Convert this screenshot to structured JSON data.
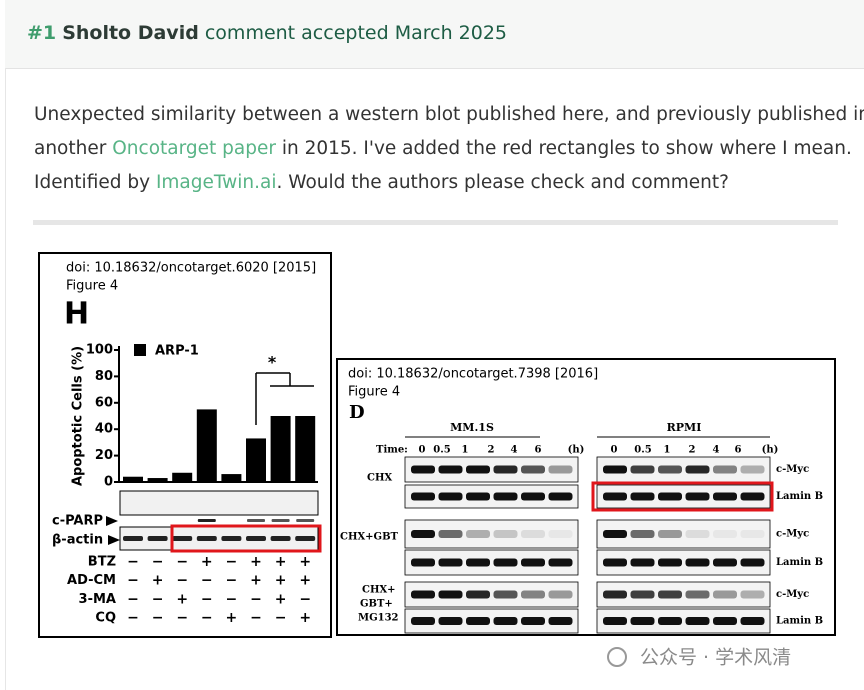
{
  "comment": {
    "number": "#1",
    "author": "Sholto David",
    "status": "comment accepted March 2025",
    "line1": "Unexpected similarity between a western blot published here, and previously published in",
    "line2": [
      "another ",
      "Oncotarget paper",
      " in 2015. I've added the red rectangles to show where I mean."
    ],
    "line3": [
      "Identified by ",
      "ImageTwin.ai",
      ". Would the authors please check and comment?"
    ]
  },
  "figure_left": {
    "doi": "doi: 10.18632/oncotarget.6020 [2015]",
    "figure": "Figure 4",
    "panel": "H",
    "star": "*",
    "blots": [
      "c-PARP",
      "β-actin"
    ],
    "treatments": [
      {
        "name": "BTZ",
        "signs": [
          "−",
          "−",
          "−",
          "+",
          "−",
          "+",
          "+",
          "+"
        ]
      },
      {
        "name": "AD-CM",
        "signs": [
          "−",
          "+",
          "−",
          "−",
          "−",
          "+",
          "+",
          "+"
        ]
      },
      {
        "name": "3-MA",
        "signs": [
          "−",
          "−",
          "+",
          "−",
          "−",
          "−",
          "+",
          "−"
        ]
      },
      {
        "name": "CQ",
        "signs": [
          "−",
          "−",
          "−",
          "−",
          "+",
          "−",
          "−",
          "+"
        ]
      }
    ]
  },
  "chart_data": {
    "type": "bar",
    "y_label": "Apoptotic Cells (%)",
    "series": [
      {
        "name": "ARP-1",
        "color": "#000000",
        "values": [
          4,
          3,
          7,
          55,
          6,
          33,
          50,
          50
        ]
      }
    ],
    "ylim": [
      0,
      100
    ],
    "yticks": [
      0,
      20,
      40,
      60,
      80,
      100
    ]
  },
  "figure_right": {
    "doi": "doi: 10.18632/oncotarget.7398 [2016]",
    "figure": "Figure 4",
    "panel": "D",
    "groups": [
      "MM.1S",
      "RPMI"
    ],
    "time_label": "Time:",
    "times": [
      "0",
      "0.5",
      "1",
      "2",
      "4",
      "6",
      "(h)"
    ],
    "conditions": [
      "CHX",
      "CHX+GBT",
      "CHX+",
      "GBT+",
      "MG132"
    ],
    "blots": [
      "c-Myc",
      "Lamin B"
    ]
  },
  "watermark": "公众号 · 学术风清"
}
